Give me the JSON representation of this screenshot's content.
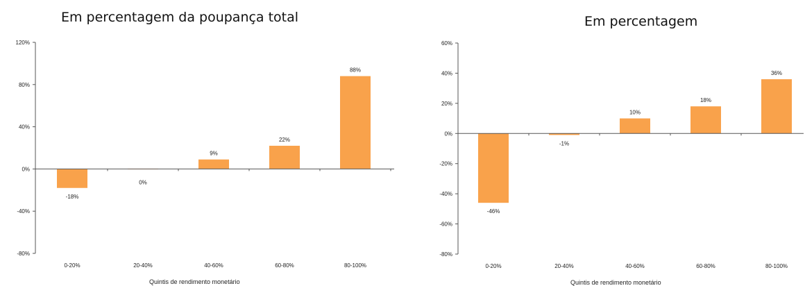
{
  "chart_data": [
    {
      "type": "bar",
      "title": "Em percentagem da poupança total",
      "xlabel": "Quintis de rendimento monetário",
      "ylabel": "",
      "categories": [
        "0-20%",
        "20-40%",
        "40-60%",
        "60-80%",
        "80-100%"
      ],
      "values": [
        -18,
        0,
        9,
        22,
        88
      ],
      "data_labels": [
        "-18%",
        "0%",
        "9%",
        "22%",
        "88%"
      ],
      "ylim": [
        -80,
        120
      ],
      "yticks": [
        -80,
        -40,
        0,
        40,
        80,
        120
      ],
      "ytick_labels": [
        "-80%",
        "-40%",
        "0%",
        "40%",
        "80%",
        "120%"
      ],
      "bar_color": "#F9A24B",
      "grid": false,
      "legend": "none"
    },
    {
      "type": "bar",
      "title": "Em percentagem",
      "xlabel": "Quintis de rendimento monetário",
      "ylabel": "",
      "categories": [
        "0-20%",
        "20-40%",
        "40-60%",
        "60-80%",
        "80-100%"
      ],
      "values": [
        -46,
        -1,
        10,
        18,
        36
      ],
      "data_labels": [
        "-46%",
        "-1%",
        "10%",
        "18%",
        "36%"
      ],
      "ylim": [
        -80,
        60
      ],
      "yticks": [
        -80,
        -60,
        -40,
        -20,
        0,
        20,
        40,
        60
      ],
      "ytick_labels": [
        "-80%",
        "-60%",
        "-40%",
        "-20%",
        "0%",
        "20%",
        "40%",
        "60%"
      ],
      "bar_color": "#F9A24B",
      "grid": false,
      "legend": "none"
    }
  ]
}
